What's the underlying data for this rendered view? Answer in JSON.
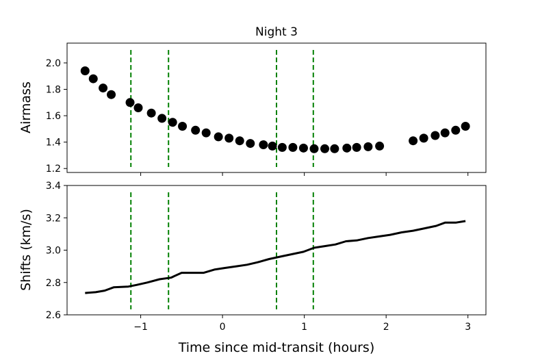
{
  "chart_data": [
    {
      "type": "scatter",
      "title": "Night 3",
      "ylabel": "Airmass",
      "xlabel": "",
      "xlim": [
        -1.9,
        3.22
      ],
      "ylim": [
        1.17,
        2.15
      ],
      "yticks": [
        1.2,
        1.4,
        1.6,
        1.8,
        2.0
      ],
      "ytick_labels": [
        "1.2",
        "1.4",
        "1.6",
        "1.8",
        "2.0"
      ],
      "xticks": [
        -1,
        0,
        1,
        2,
        3
      ],
      "grid": false,
      "marker_color": "#000000",
      "vlines": [
        -1.12,
        -0.66,
        0.66,
        1.11
      ],
      "vline_color": "#008000",
      "points": [
        [
          -1.68,
          1.94
        ],
        [
          -1.58,
          1.88
        ],
        [
          -1.46,
          1.81
        ],
        [
          -1.36,
          1.76
        ],
        [
          -1.13,
          1.7
        ],
        [
          -1.03,
          1.66
        ],
        [
          -0.87,
          1.62
        ],
        [
          -0.74,
          1.58
        ],
        [
          -0.61,
          1.55
        ],
        [
          -0.49,
          1.52
        ],
        [
          -0.33,
          1.49
        ],
        [
          -0.2,
          1.47
        ],
        [
          -0.05,
          1.44
        ],
        [
          0.08,
          1.43
        ],
        [
          0.21,
          1.41
        ],
        [
          0.34,
          1.39
        ],
        [
          0.5,
          1.38
        ],
        [
          0.61,
          1.37
        ],
        [
          0.73,
          1.36
        ],
        [
          0.86,
          1.36
        ],
        [
          0.99,
          1.355
        ],
        [
          1.12,
          1.35
        ],
        [
          1.25,
          1.35
        ],
        [
          1.37,
          1.35
        ],
        [
          1.52,
          1.355
        ],
        [
          1.64,
          1.36
        ],
        [
          1.78,
          1.365
        ],
        [
          1.92,
          1.37
        ],
        [
          2.33,
          1.41
        ],
        [
          2.46,
          1.43
        ],
        [
          2.6,
          1.45
        ],
        [
          2.72,
          1.47
        ],
        [
          2.85,
          1.49
        ],
        [
          2.97,
          1.52
        ]
      ]
    },
    {
      "type": "line",
      "xlabel": "Time since mid-transit (hours)",
      "ylabel": "Shifts (km/s)",
      "xlim": [
        -1.9,
        3.22
      ],
      "ylim": [
        2.6,
        3.4
      ],
      "yticks": [
        2.6,
        2.8,
        3.0,
        3.2,
        3.4
      ],
      "ytick_labels": [
        "2.6",
        "2.8",
        "3.0",
        "3.2",
        "3.4"
      ],
      "xticks": [
        -1,
        0,
        1,
        2,
        3
      ],
      "xtick_labels": [
        "−1",
        "0",
        "1",
        "2",
        "3"
      ],
      "grid": false,
      "line_color": "#000000",
      "vlines": [
        -1.12,
        -0.66,
        0.66,
        1.11
      ],
      "vline_color": "#008000",
      "x": [
        -1.68,
        -1.55,
        -1.44,
        -1.33,
        -1.15,
        -1.05,
        -0.92,
        -0.77,
        -0.63,
        -0.5,
        -0.38,
        -0.23,
        -0.1,
        0.03,
        0.17,
        0.3,
        0.43,
        0.57,
        0.71,
        0.85,
        0.99,
        1.12,
        1.25,
        1.38,
        1.51,
        1.64,
        1.78,
        1.92,
        2.05,
        2.19,
        2.33,
        2.47,
        2.61,
        2.72,
        2.85,
        2.97
      ],
      "y": [
        2.735,
        2.74,
        2.75,
        2.77,
        2.775,
        2.785,
        2.8,
        2.82,
        2.83,
        2.86,
        2.86,
        2.86,
        2.88,
        2.89,
        2.9,
        2.91,
        2.925,
        2.945,
        2.96,
        2.975,
        2.99,
        3.015,
        3.025,
        3.035,
        3.055,
        3.06,
        3.075,
        3.085,
        3.095,
        3.11,
        3.12,
        3.135,
        3.15,
        3.17,
        3.17,
        3.18
      ]
    }
  ]
}
